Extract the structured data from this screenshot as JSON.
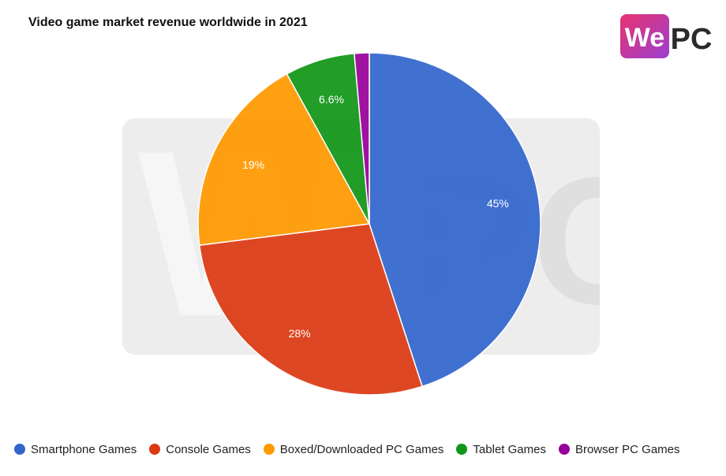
{
  "chart_data": {
    "type": "pie",
    "title": "Video game market revenue worldwide in 2021",
    "categories": [
      "Smartphone Games",
      "Console Games",
      "Boxed/Downloaded PC Games",
      "Tablet Games",
      "Browser PC Games"
    ],
    "values": [
      45,
      28,
      19,
      6.6,
      1.4
    ],
    "labels": [
      "45%",
      "28%",
      "19%",
      "6.6%",
      ""
    ],
    "colors": [
      "#3366cc",
      "#dc3912",
      "#ff9900",
      "#109618",
      "#990099"
    ],
    "legend_position": "bottom"
  },
  "logo": {
    "text_we": "We",
    "text_pc": "PC",
    "brand_colors": [
      "#e8336f",
      "#9b3fd1",
      "#2b2b2b"
    ]
  }
}
